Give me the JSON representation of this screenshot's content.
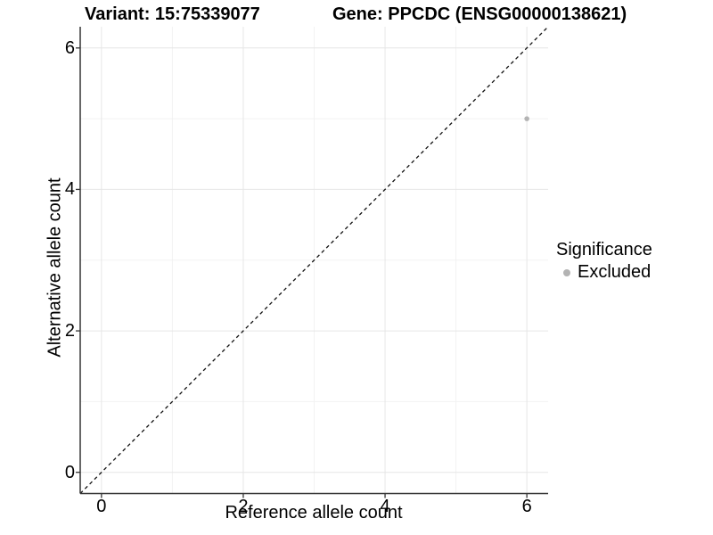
{
  "chart_data": {
    "type": "scatter",
    "title_left": "Variant: 15:75339077",
    "title_right": "Gene: PPCDC (ENSG00000138621)",
    "xlabel": "Reference allele count",
    "ylabel": "Alternative allele count",
    "xlim": [
      -0.3,
      6.3
    ],
    "ylim": [
      -0.3,
      6.3
    ],
    "x_ticks": [
      0,
      2,
      4,
      6
    ],
    "y_ticks": [
      0,
      2,
      4,
      6
    ],
    "x_minor_ticks": [
      1,
      3,
      5
    ],
    "y_minor_ticks": [
      1,
      3,
      5
    ],
    "grid": true,
    "series": [
      {
        "name": "Excluded",
        "points": [
          {
            "x": 6,
            "y": 5
          }
        ],
        "color": "#b3b3b3",
        "marker": "circle"
      }
    ],
    "reference_line": {
      "type": "identity",
      "slope": 1,
      "intercept": 0,
      "style": "dashed",
      "color": "#111111"
    },
    "legend": {
      "title": "Significance",
      "position": "right",
      "entries": [
        {
          "label": "Excluded",
          "color": "#b3b3b3",
          "marker": "circle"
        }
      ]
    },
    "colors": {
      "grid_major": "#e6e6e6",
      "grid_minor": "#f2f2f2",
      "axis": "#333333",
      "point": "#b9b9b9",
      "text": "#000000"
    }
  }
}
